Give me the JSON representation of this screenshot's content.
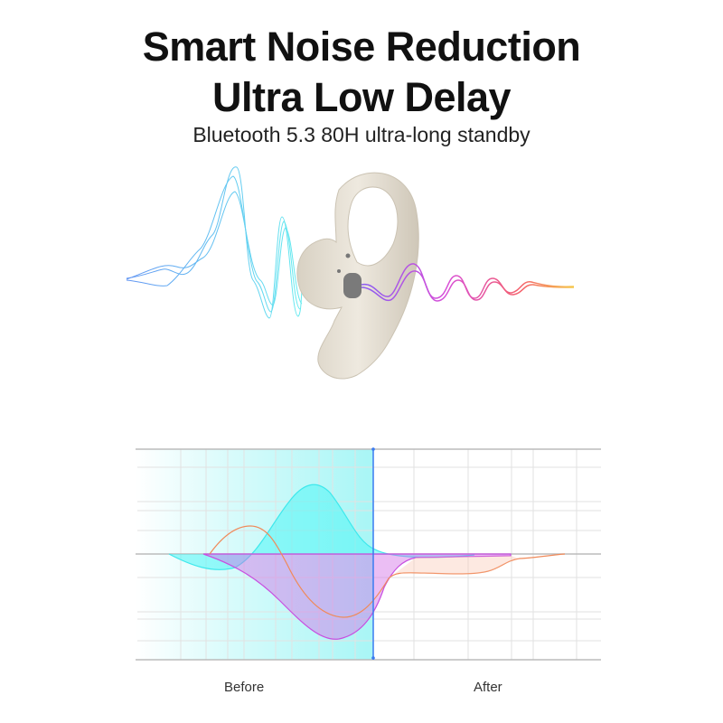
{
  "headline": {
    "line1": "Smart Noise Reduction",
    "line2": "Ultra Low Delay",
    "subtitle": "Bluetooth 5.3 80H ultra-long standby"
  },
  "illustration": {
    "product": "open-ear earbud",
    "colors": {
      "earbud": "#e6e0d4",
      "wave_in": "#3fb6f0",
      "wave_out_start": "#a64df0",
      "wave_out_end": "#f5c84a"
    }
  },
  "comparison": {
    "before_label": "Before",
    "after_label": "After",
    "colors": {
      "cyan": "#3fe8ec",
      "orange": "#f08a5a",
      "magenta": "#c84fe0",
      "divider": "#3a7bf0",
      "grid": "#dddddd"
    }
  }
}
